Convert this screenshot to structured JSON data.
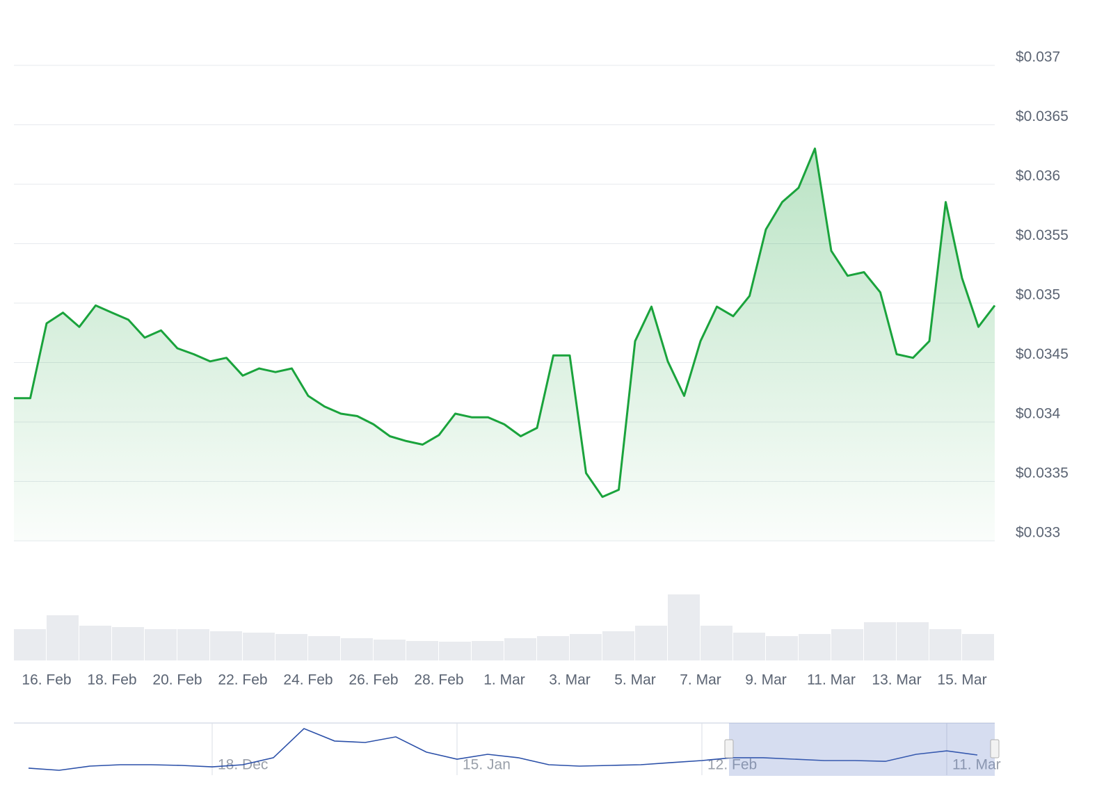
{
  "chart_data": {
    "type": "area",
    "categories": [
      null,
      null,
      "16. Feb",
      null,
      null,
      null,
      "18. Feb",
      null,
      null,
      null,
      "20. Feb",
      null,
      null,
      null,
      "22. Feb",
      null,
      null,
      null,
      "24. Feb",
      null,
      null,
      null,
      "26. Feb",
      null,
      null,
      null,
      "28. Feb",
      null,
      null,
      null,
      "1. Mar",
      null,
      null,
      null,
      "3. Mar",
      null,
      null,
      null,
      "5. Mar",
      null,
      null,
      null,
      "7. Mar",
      null,
      null,
      null,
      "9. Mar",
      null,
      null,
      null,
      "11. Mar",
      null,
      null,
      null,
      "13. Mar",
      null,
      null,
      null,
      "15. Mar",
      null,
      null
    ],
    "series": [
      {
        "color": "#1aa33c",
        "values": [
          0.0342,
          0.0342,
          0.03483,
          0.03492,
          0.0348,
          0.03498,
          0.03492,
          0.03486,
          0.03471,
          0.03477,
          0.03462,
          0.03457,
          0.03451,
          0.03454,
          0.03439,
          0.03445,
          0.03442,
          0.03445,
          0.03422,
          0.03413,
          0.03407,
          0.03405,
          0.03398,
          0.03388,
          0.03384,
          0.03381,
          0.03389,
          0.03407,
          0.03404,
          0.03404,
          0.03398,
          0.03388,
          0.03395,
          0.03456,
          0.03456,
          0.03357,
          0.03337,
          0.03343,
          0.03468,
          0.03497,
          0.03451,
          0.03422,
          0.03468,
          0.03497,
          0.03489,
          0.03506,
          0.03562,
          0.03585,
          0.03597,
          0.0363,
          0.03544,
          0.03523,
          0.03526,
          0.03509,
          0.03457,
          0.03454,
          0.03468,
          0.03585,
          0.03521,
          0.0348,
          0.03498
        ]
      }
    ],
    "ylim": [
      0.033,
      0.037
    ],
    "yticks": [
      {
        "value": 0.033,
        "label": "$0.033"
      },
      {
        "value": 0.0335,
        "label": "$0.0335"
      },
      {
        "value": 0.034,
        "label": "$0.034"
      },
      {
        "value": 0.0345,
        "label": "$0.0345"
      },
      {
        "value": 0.035,
        "label": "$0.035"
      },
      {
        "value": 0.0355,
        "label": "$0.0355"
      },
      {
        "value": 0.036,
        "label": "$0.036"
      },
      {
        "value": 0.0365,
        "label": "$0.0365"
      },
      {
        "value": 0.037,
        "label": "$0.037"
      }
    ],
    "grid": true,
    "volume": {
      "color": "#e9ebef",
      "vlim": [
        0,
        100
      ],
      "values": [
        45,
        65,
        50,
        48,
        45,
        45,
        42,
        40,
        38,
        35,
        32,
        30,
        28,
        27,
        28,
        32,
        35,
        38,
        42,
        50,
        95,
        50,
        40,
        35,
        38,
        45,
        55,
        55,
        45,
        38
      ]
    },
    "navigator": {
      "color": "#2a4fa8",
      "ylim": [
        0.0333,
        0.0377
      ],
      "categories": [
        null,
        null,
        null,
        null,
        null,
        null,
        "18. Dec",
        null,
        null,
        null,
        null,
        null,
        null,
        null,
        "15. Jan",
        null,
        null,
        null,
        null,
        null,
        null,
        null,
        "12. Feb",
        null,
        null,
        null,
        null,
        null,
        null,
        null,
        "11. Mar",
        null
      ],
      "values": [
        0.03389,
        0.03371,
        0.03406,
        0.03418,
        0.03418,
        0.03412,
        0.034,
        0.03418,
        0.03477,
        0.03723,
        0.03618,
        0.03606,
        0.03653,
        0.03524,
        0.03465,
        0.03506,
        0.03477,
        0.03418,
        0.03406,
        0.03412,
        0.03418,
        0.03436,
        0.03453,
        0.03477,
        0.03477,
        0.03465,
        0.03453,
        0.03453,
        0.03447,
        0.03506,
        0.03535,
        0.035
      ]
    }
  }
}
